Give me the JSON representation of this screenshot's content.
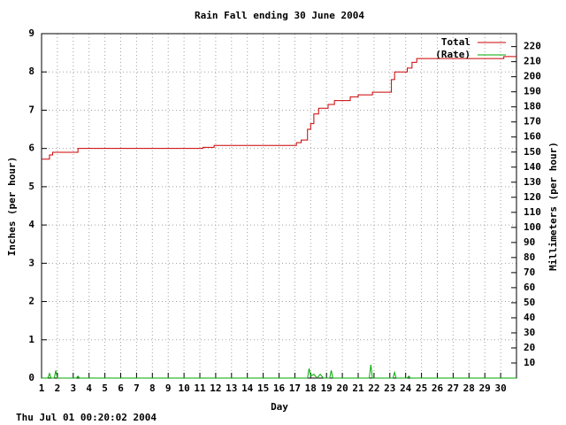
{
  "chart_data": {
    "type": "line",
    "title": "Rain Fall ending 30 June 2004",
    "xlabel": "Day",
    "ylabel": "Inches (per hour)",
    "y2label": "Millimeters (per hour)",
    "timestamp": "Thu Jul 01 00:20:02 2004",
    "xlim": [
      1,
      31
    ],
    "xticks": [
      1,
      2,
      3,
      4,
      5,
      6,
      7,
      8,
      9,
      10,
      11,
      12,
      13,
      14,
      15,
      16,
      17,
      18,
      19,
      20,
      21,
      22,
      23,
      24,
      25,
      26,
      27,
      28,
      29,
      30
    ],
    "ylim": [
      0,
      9
    ],
    "yticks": [
      0,
      1,
      2,
      3,
      4,
      5,
      6,
      7,
      8,
      9
    ],
    "y2lim": [
      0,
      228.6
    ],
    "y2ticks": [
      10,
      20,
      30,
      40,
      50,
      60,
      70,
      80,
      90,
      100,
      110,
      120,
      130,
      140,
      150,
      160,
      170,
      180,
      190,
      200,
      210,
      220
    ],
    "grid": true,
    "legend": "top-right",
    "series": [
      {
        "name": "Total",
        "color": "#cc0000",
        "x": [
          1,
          1.5,
          1.5,
          1.7,
          1.7,
          3.3,
          3.3,
          11.2,
          11.2,
          11.9,
          11.9,
          17.1,
          17.1,
          17.4,
          17.4,
          17.8,
          17.8,
          18.0,
          18.0,
          18.2,
          18.2,
          18.5,
          18.5,
          19.1,
          19.1,
          19.5,
          19.5,
          20.5,
          20.5,
          21.0,
          21.0,
          21.9,
          21.9,
          23.1,
          23.1,
          23.3,
          23.3,
          24.1,
          24.1,
          24.4,
          24.4,
          24.7,
          24.7,
          30.2,
          30.2,
          31
        ],
        "values": [
          5.72,
          5.72,
          5.83,
          5.83,
          5.9,
          5.9,
          6.0,
          6.0,
          6.03,
          6.03,
          6.08,
          6.08,
          6.15,
          6.15,
          6.22,
          6.22,
          6.5,
          6.5,
          6.65,
          6.65,
          6.9,
          6.9,
          7.05,
          7.05,
          7.15,
          7.15,
          7.25,
          7.25,
          7.35,
          7.35,
          7.4,
          7.4,
          7.47,
          7.47,
          7.8,
          7.8,
          8.0,
          8.0,
          8.1,
          8.1,
          8.25,
          8.25,
          8.35,
          8.35,
          8.4,
          8.4
        ]
      },
      {
        "name": "(Rate)",
        "color": "#00aa00",
        "x": [
          1,
          1.4,
          1.5,
          1.6,
          1.8,
          1.9,
          2,
          3.2,
          3.3,
          3.4,
          17.8,
          17.9,
          18,
          18.2,
          18.4,
          18.6,
          18.8,
          19.2,
          19.3,
          19.4,
          21.7,
          21.8,
          21.9,
          23.2,
          23.3,
          23.4,
          24.1,
          24.2,
          24.3,
          31
        ],
        "values": [
          0,
          0,
          0.12,
          0,
          0,
          0.2,
          0,
          0,
          0.05,
          0,
          0,
          0.25,
          0.05,
          0.1,
          0,
          0.1,
          0,
          0,
          0.2,
          0,
          0,
          0.35,
          0,
          0,
          0.15,
          0,
          0,
          0.05,
          0,
          0
        ]
      }
    ]
  }
}
